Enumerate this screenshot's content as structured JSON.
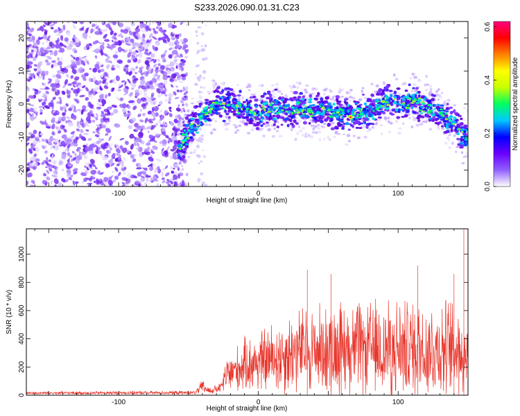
{
  "title": "S233.2026.090.01.31.C23",
  "chart_data": [
    {
      "type": "heatmap",
      "title": "S233.2026.090.01.31.C23",
      "xlabel": "Height of straight line (km)",
      "ylabel": "Frequency (Hz)",
      "xlim": [
        -166,
        150
      ],
      "ylim": [
        -25,
        25
      ],
      "x_tick_labels": [
        "-100",
        "0",
        "100"
      ],
      "x_ticks": [
        -100,
        0,
        100
      ],
      "y_tick_labels": [
        "-20",
        "-10",
        "0",
        "10",
        "20"
      ],
      "y_ticks": [
        -20,
        -10,
        0,
        10,
        20
      ],
      "noise_region_x": [
        -166,
        -55
      ],
      "gap_region_x": [
        -55,
        -40
      ],
      "signal_band": {
        "x_start": -57,
        "x_end": 150,
        "center_freq_points": [
          [
            -57,
            -14
          ],
          [
            -50,
            -8
          ],
          [
            -40,
            -4
          ],
          [
            -30,
            0
          ],
          [
            -20,
            0
          ],
          [
            -10,
            -2
          ],
          [
            0,
            -3
          ],
          [
            10,
            -1
          ],
          [
            20,
            -2
          ],
          [
            30,
            -1
          ],
          [
            40,
            -2
          ],
          [
            50,
            -2
          ],
          [
            60,
            -3
          ],
          [
            70,
            -3
          ],
          [
            80,
            -2
          ],
          [
            90,
            1
          ],
          [
            100,
            0
          ],
          [
            110,
            1
          ],
          [
            120,
            -1
          ],
          [
            130,
            -3
          ],
          [
            140,
            -6
          ],
          [
            148,
            -10
          ]
        ],
        "half_width_hz": 5
      },
      "max_marker": {
        "x": 66,
        "y": -4
      }
    },
    {
      "type": "colorbar",
      "label": "Normalized spectral amplitude",
      "range": [
        0.0,
        0.62
      ],
      "tick_labels": [
        "0.0",
        "0.2",
        "0.4",
        "0.6"
      ],
      "ticks": [
        0.0,
        0.2,
        0.4,
        0.6
      ],
      "colors": [
        "#ffffff",
        "#9060ff",
        "#6a00ff",
        "#0000ff",
        "#00c8ff",
        "#00ff60",
        "#c8ff00",
        "#ffff00",
        "#ff8000",
        "#ff0000",
        "#ff0080"
      ]
    },
    {
      "type": "line",
      "xlabel": "Height of straight line (km)",
      "ylabel": "SNR (10 * v/v)",
      "xlim": [
        -166,
        150
      ],
      "ylim": [
        0,
        1180
      ],
      "x_tick_labels": [
        "-100",
        "0",
        "100"
      ],
      "x_ticks": [
        -100,
        0,
        100
      ],
      "y_tick_labels": [
        "0",
        "200",
        "400",
        "600",
        "800",
        "1000"
      ],
      "y_ticks": [
        0,
        200,
        400,
        600,
        800,
        1000
      ],
      "color": "#e8342a",
      "envelope": [
        {
          "x": -166,
          "base": 15,
          "spread": 12
        },
        {
          "x": -45,
          "base": 18,
          "spread": 15
        },
        {
          "x": -40,
          "base": 60,
          "spread": 60
        },
        {
          "x": -35,
          "base": 30,
          "spread": 30
        },
        {
          "x": -27,
          "base": 50,
          "spread": 40
        },
        {
          "x": -23,
          "base": 140,
          "spread": 150
        },
        {
          "x": -10,
          "base": 210,
          "spread": 220
        },
        {
          "x": 10,
          "base": 260,
          "spread": 300
        },
        {
          "x": 30,
          "base": 320,
          "spread": 360
        },
        {
          "x": 60,
          "base": 330,
          "spread": 380
        },
        {
          "x": 90,
          "base": 330,
          "spread": 400
        },
        {
          "x": 120,
          "base": 330,
          "spread": 420
        },
        {
          "x": 150,
          "base": 320,
          "spread": 400
        }
      ],
      "spikes": [
        {
          "x": 147,
          "y": 1180
        },
        {
          "x": 35,
          "y": 890
        },
        {
          "x": 114,
          "y": 920
        },
        {
          "x": 52,
          "y": 860
        },
        {
          "x": 140,
          "y": 860
        }
      ]
    }
  ]
}
